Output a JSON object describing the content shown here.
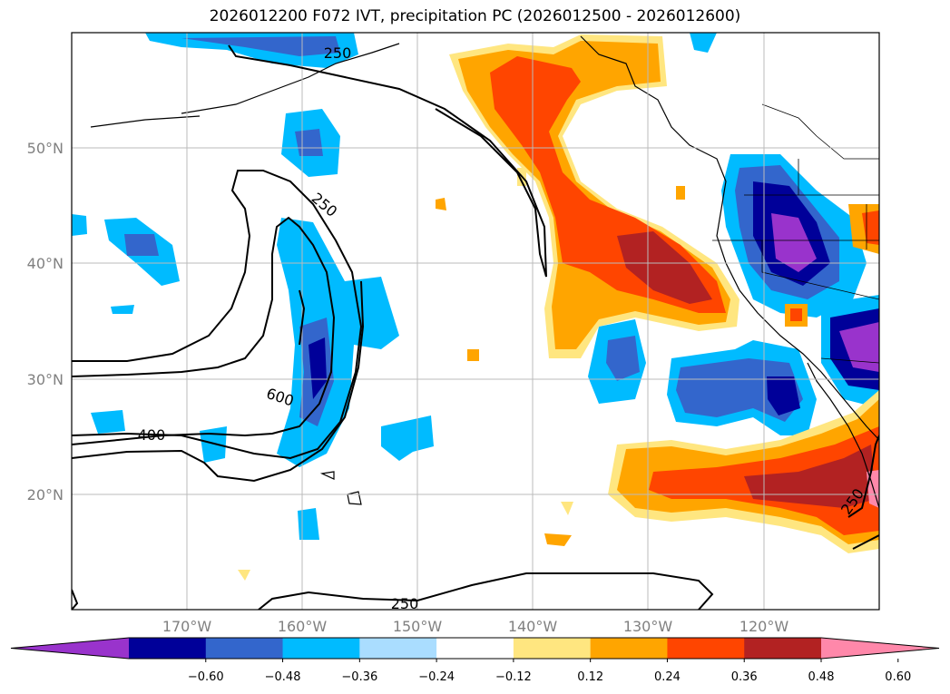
{
  "title": "2026012200 F072 IVT, precipitation PC (2026012500 - 2026012600)",
  "latitude_labels": [
    "50°N",
    "40°N",
    "30°N",
    "20°N"
  ],
  "longitude_labels": [
    "170°W",
    "160°W",
    "150°W",
    "140°W",
    "130°W",
    "120°W"
  ],
  "colorbar": {
    "levels": [
      "−0.60",
      "−0.48",
      "−0.36",
      "−0.24",
      "−0.12",
      "0.12",
      "0.24",
      "0.36",
      "0.48",
      "0.60"
    ],
    "colors": [
      "#9933cc",
      "#000099",
      "#3366cc",
      "#00bbff",
      "#aaddff",
      "#ffffff",
      "#ffe680",
      "#ffa500",
      "#ff4500",
      "#b22222",
      "#ff88aa"
    ]
  },
  "ivt_contour_labels": {
    "c250_north": "250",
    "c250_mid": "250",
    "c600": "600",
    "c400": "400",
    "c250_south": "250",
    "c250_east": "250"
  }
}
